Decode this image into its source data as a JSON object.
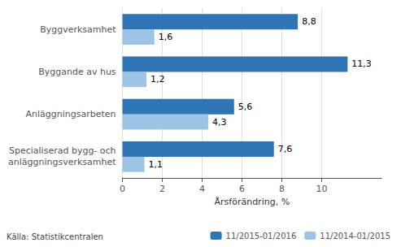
{
  "chart_data": {
    "type": "bar",
    "orientation": "horizontal",
    "categories": [
      "Byggverksamhet",
      "Byggande av hus",
      "Anläggningsarbeten",
      "Specialiserad bygg- och\nanläggningsverksamhet"
    ],
    "series": [
      {
        "name": "11/2015-01/2016",
        "color": "#2E75B6",
        "values": [
          8.8,
          11.3,
          5.6,
          7.6
        ],
        "value_labels": [
          "8,8",
          "11,3",
          "5,6",
          "7,6"
        ]
      },
      {
        "name": "11/2014-01/2015",
        "color": "#9DC3E6",
        "values": [
          1.6,
          1.2,
          4.3,
          1.1
        ],
        "value_labels": [
          "1,6",
          "1,2",
          "4,3",
          "1,1"
        ]
      }
    ],
    "data_labels": true,
    "xlabel": "Årsförändring, %",
    "xlim": [
      0,
      13.0
    ],
    "xticks": [
      0,
      2,
      4,
      6,
      8,
      10
    ],
    "grid": true,
    "legend": "lower right",
    "annotations": [
      "Källa: Statistikcentralen"
    ]
  }
}
